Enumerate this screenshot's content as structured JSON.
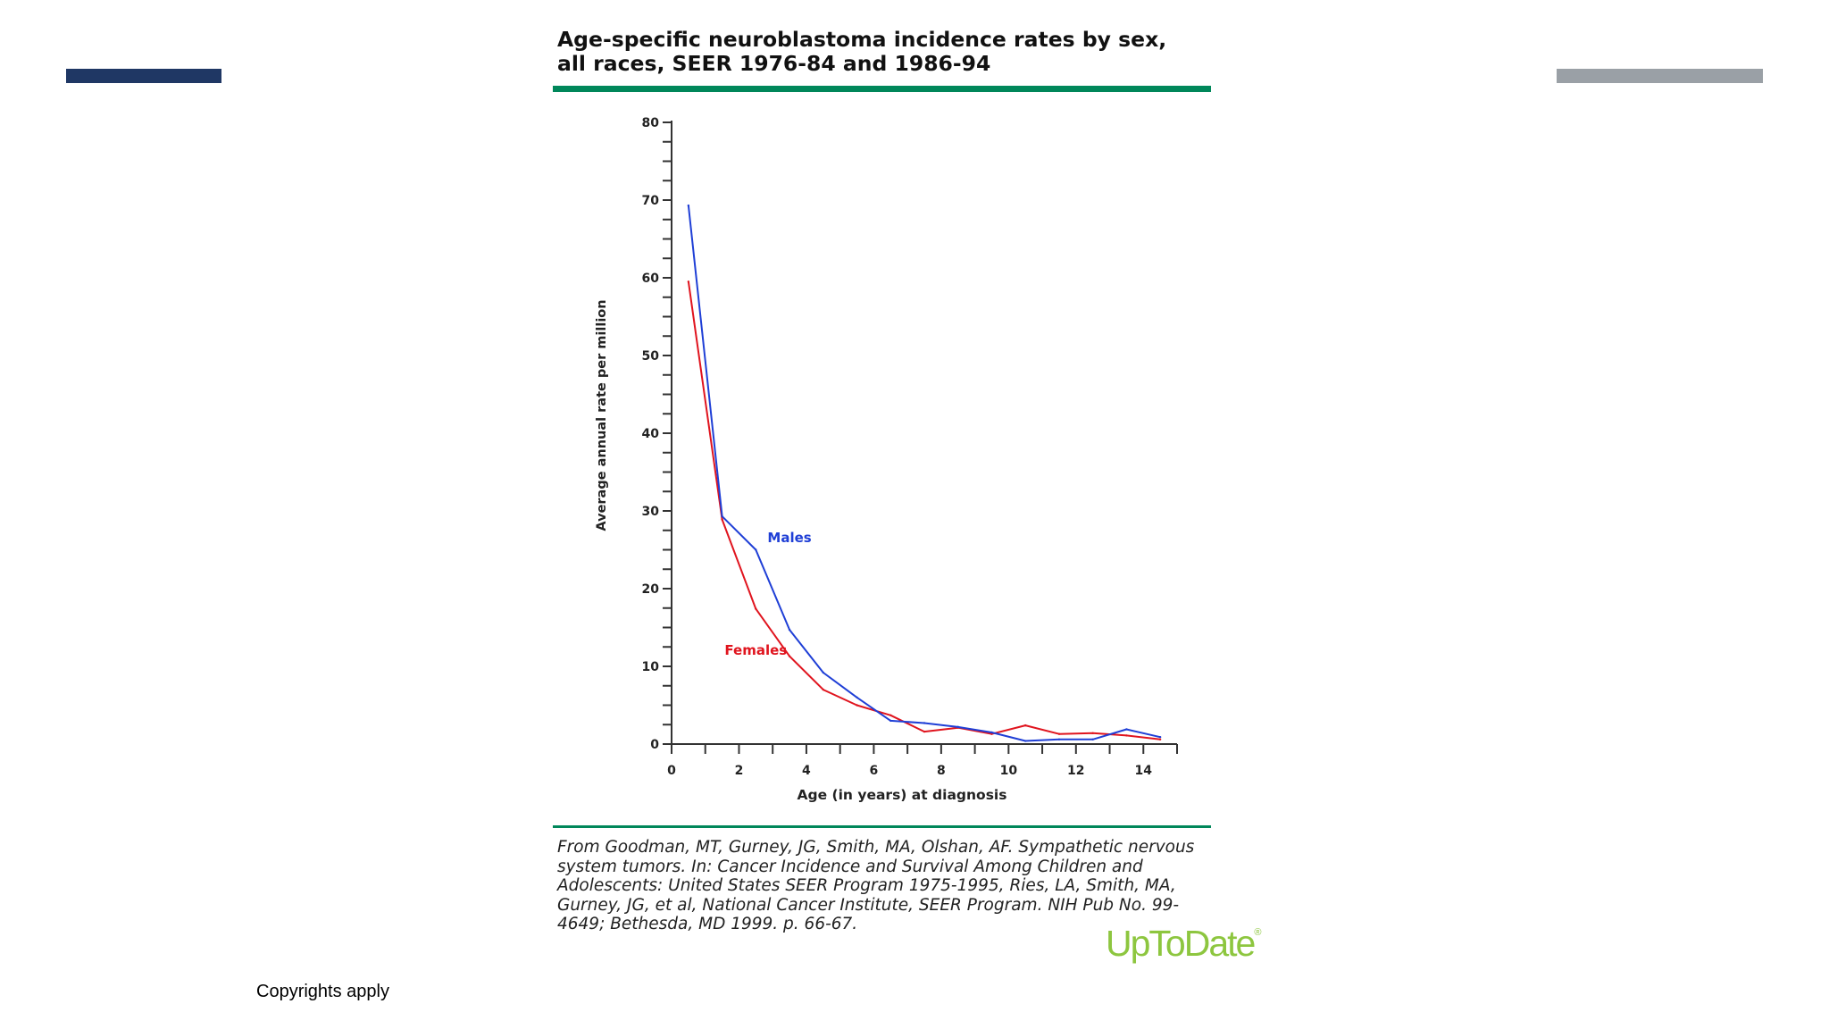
{
  "colors": {
    "left_bar": "#1f3764",
    "right_bar": "#9aa0a6",
    "rule": "#00875a",
    "males": "#1f3fd6",
    "females": "#e0141e",
    "axis": "#333333",
    "logo": "#8dc63f"
  },
  "figure": {
    "title": "Age-specific neuroblastoma incidence rates by sex, all races, SEER 1976-84 and 1986-94",
    "citation": "From Goodman, MT, Gurney, JG, Smith, MA, Olshan, AF. Sympathetic nervous system tumors. In: Cancer Incidence and Survival Among Children and Adolescents: United States SEER Program 1975-1995, Ries, LA, Smith, MA, Gurney, JG, et al, National Cancer Institute, SEER Program. NIH Pub No. 99-4649; Bethesda, MD 1999. p. 66-67."
  },
  "logo": {
    "text": "UpToDate",
    "mark": "®"
  },
  "footer": {
    "copyright": "Copyrights apply"
  },
  "chart_data": {
    "type": "line",
    "title": "Age-specific neuroblastoma incidence rates by sex, all races, SEER 1976-84 and 1986-94",
    "xlabel": "Age (in years) at diagnosis",
    "ylabel": "Average annual rate per million",
    "xlim": [
      0,
      15
    ],
    "ylim": [
      0,
      80
    ],
    "x_major_ticks": [
      0,
      2,
      4,
      6,
      8,
      10,
      12,
      14
    ],
    "x_minor_step": 1,
    "y_major_ticks": [
      0,
      10,
      20,
      30,
      40,
      50,
      60,
      70,
      80
    ],
    "y_minor_step": 2.5,
    "grid": false,
    "x": [
      0.5,
      1.5,
      2.5,
      3.5,
      4.5,
      5.5,
      6.5,
      7.5,
      8.5,
      9.5,
      10.5,
      11.5,
      12.5,
      13.5,
      14.5
    ],
    "series": [
      {
        "name": "Males",
        "color_key": "males",
        "values": [
          69.3,
          29.3,
          25.0,
          14.7,
          9.2,
          6.0,
          3.0,
          2.7,
          2.2,
          1.5,
          0.4,
          0.6,
          0.6,
          1.9,
          0.9
        ]
      },
      {
        "name": "Females",
        "color_key": "females",
        "values": [
          59.5,
          28.9,
          17.4,
          11.3,
          7.0,
          5.0,
          3.7,
          1.6,
          2.1,
          1.3,
          2.4,
          1.3,
          1.4,
          1.1,
          0.6
        ]
      }
    ],
    "annotations": [
      {
        "text": "Males",
        "series": "Males",
        "x": 3.5,
        "y": 26
      },
      {
        "text": "Females",
        "series": "Females",
        "x": 2.5,
        "y": 11.5
      }
    ]
  }
}
